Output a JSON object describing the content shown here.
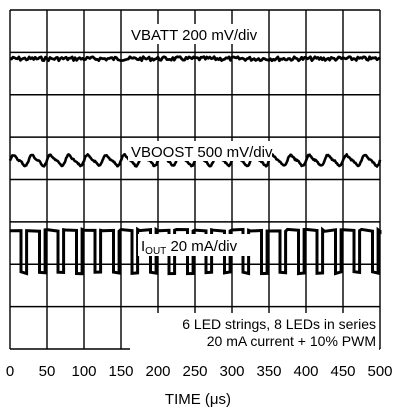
{
  "chart_data": {
    "type": "line",
    "xlabel": "TIME (μs)",
    "x_ticks": [
      "0",
      "50",
      "100",
      "150",
      "200",
      "250",
      "300",
      "350",
      "400",
      "450",
      "500"
    ],
    "xlim": [
      0,
      500
    ],
    "grid": true,
    "grid_divisions": {
      "x": 10,
      "y": 8
    },
    "series": [
      {
        "name": "VBATT 200 mV/div",
        "label_main": "VBATT 200 mV/div",
        "waveform": "flat noisy dc",
        "level_div_from_top": 1.15,
        "ripple_div": 0.06
      },
      {
        "name": "VBOOST 500 mV/div",
        "label_main": "VBOOST 500 mV/div",
        "waveform": "periodic ripple",
        "level_div_from_top": 3.55,
        "ripple_div": 0.2,
        "period_us": 25
      },
      {
        "name": "IOUT 20 mA/div",
        "label_main": "I",
        "label_sub": "OUT",
        "label_tail": " 20 mA/div",
        "waveform": "pwm square",
        "high_div_from_top": 5.2,
        "low_div_from_top": 6.2,
        "period_us": 25,
        "low_fraction": 0.3
      }
    ],
    "annotations": [
      "6 LED strings, 8 LEDs in series",
      "20 mA current + 10% PWM"
    ]
  }
}
